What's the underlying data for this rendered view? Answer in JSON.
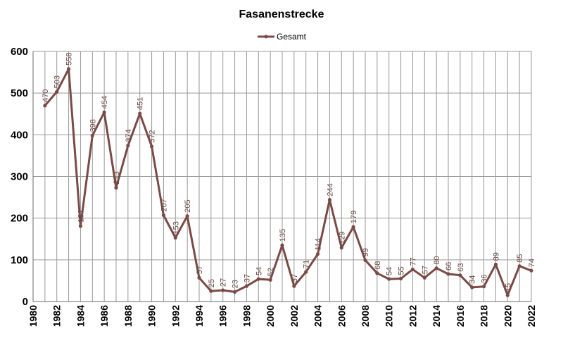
{
  "chart_data": {
    "type": "line",
    "title": "Fasanenstrecke",
    "xlabel": "",
    "ylabel": "",
    "xlim": [
      1980,
      2022
    ],
    "ylim": [
      0,
      600
    ],
    "y_ticks": [
      0,
      100,
      200,
      300,
      400,
      500,
      600
    ],
    "x_ticks": [
      1980,
      1982,
      1984,
      1986,
      1988,
      1990,
      1992,
      1994,
      1996,
      1998,
      2000,
      2002,
      2004,
      2006,
      2008,
      2010,
      2012,
      2014,
      2016,
      2018,
      2020,
      2022
    ],
    "grid": true,
    "legend_position": "top",
    "series": [
      {
        "name": "Gesamt",
        "color": "#7a4a45",
        "x": [
          1981,
          1982,
          1983,
          1984,
          1985,
          1986,
          1987,
          1988,
          1989,
          1990,
          1991,
          1992,
          1993,
          1994,
          1995,
          1996,
          1997,
          1998,
          1999,
          2000,
          2001,
          2002,
          2003,
          2004,
          2005,
          2006,
          2007,
          2008,
          2009,
          2010,
          2011,
          2012,
          2013,
          2014,
          2015,
          2016,
          2017,
          2018,
          2019,
          2020,
          2021,
          2022
        ],
        "values": [
          470,
          503,
          558,
          181,
          398,
          454,
          273,
          374,
          451,
          372,
          207,
          153,
          205,
          57,
          25,
          27,
          23,
          37,
          54,
          52,
          135,
          37,
          71,
          114,
          244,
          129,
          179,
          99,
          68,
          54,
          55,
          77,
          57,
          80,
          66,
          63,
          34,
          36,
          89,
          15,
          85,
          74
        ]
      }
    ]
  }
}
